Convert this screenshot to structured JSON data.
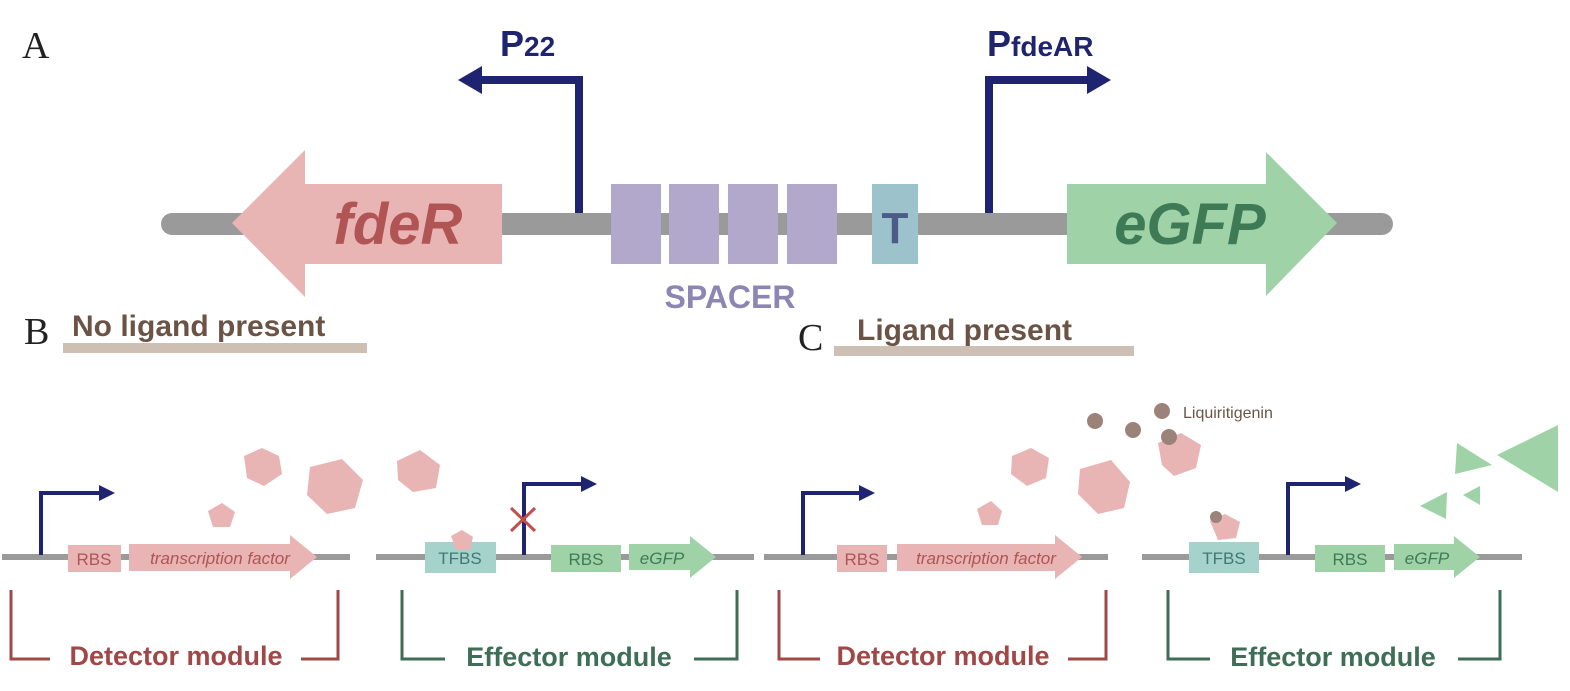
{
  "panels": {
    "a": {
      "label": "A"
    },
    "b": {
      "label": "B",
      "heading": "No ligand present"
    },
    "c": {
      "label": "C",
      "heading": "Ligand present"
    }
  },
  "construct": {
    "gene_left": "fdeR",
    "gene_right": "eGFP",
    "promoter_left": {
      "main": "P",
      "sub": "22"
    },
    "promoter_right": {
      "main": "P",
      "sub": "fdeAR"
    },
    "spacer_label": "SPACER",
    "terminator_label": "T"
  },
  "module_parts": {
    "rbs": "RBS",
    "tf": "transcription factor",
    "tfbs": "TFBS",
    "egfp": "eGFP"
  },
  "modules": {
    "detector": "Detector module",
    "effector": "Effector module"
  },
  "ligand_label": "Liquiritigenin",
  "colors": {
    "navy": "#1f2470",
    "pink": "#e8b4b4",
    "pink_text": "#b05454",
    "green": "#9fd3a7",
    "green_text": "#3e7a55",
    "spacer": "#b1a8cc",
    "terminator": "#9cc2cc",
    "tfbs": "#a6d2cc",
    "backbone": "#9a9a9a",
    "heading_bar": "#cdbfb3",
    "heading_text": "#6b5446",
    "ligand": "#9c8379"
  }
}
